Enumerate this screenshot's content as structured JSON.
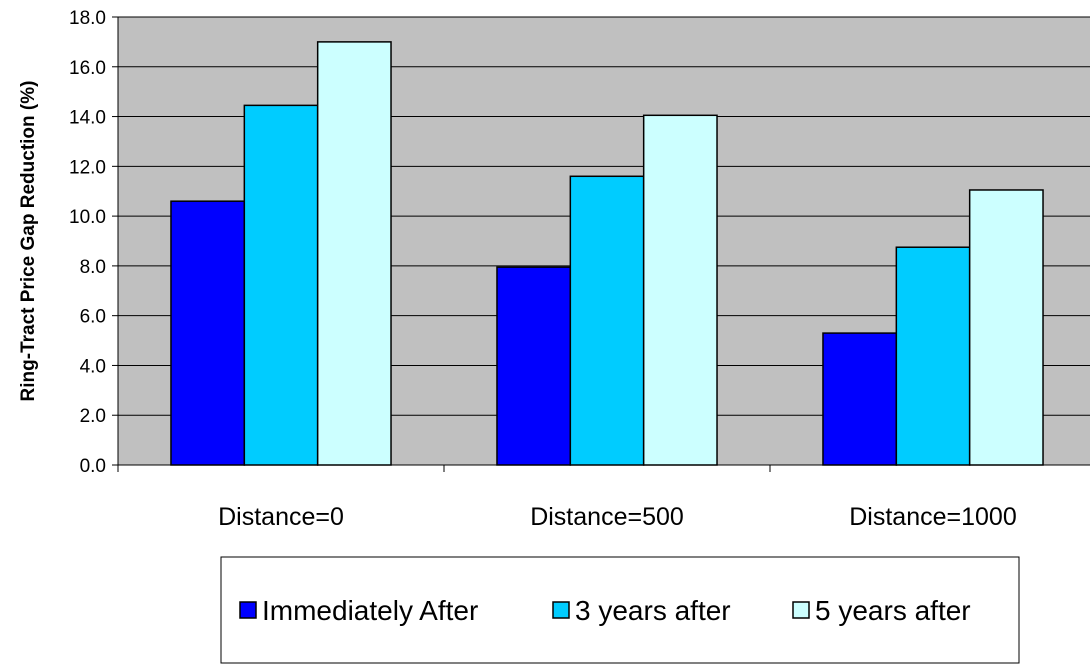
{
  "chart_data": {
    "type": "bar",
    "title": "",
    "xlabel": "",
    "ylabel": "Ring-Tract Price Gap Reduction (%)",
    "ylim": [
      0,
      18
    ],
    "ytick_step": 2,
    "ytick_labels": [
      "0.0",
      "2.0",
      "4.0",
      "6.0",
      "8.0",
      "10.0",
      "12.0",
      "14.0",
      "16.0",
      "18.0"
    ],
    "grid": true,
    "legend_position": "bottom",
    "plot_background": "#c0c0c0",
    "categories": [
      "Distance=0",
      "Distance=500",
      "Distance=1000"
    ],
    "series": [
      {
        "name": "Immediately After",
        "color": "#0000ff",
        "values": [
          10.6,
          7.95,
          5.3
        ]
      },
      {
        "name": "3 years after",
        "color": "#00ccff",
        "values": [
          14.45,
          11.6,
          8.75
        ]
      },
      {
        "name": "5 years after",
        "color": "#ccffff",
        "values": [
          17.0,
          14.05,
          11.05
        ]
      }
    ]
  }
}
